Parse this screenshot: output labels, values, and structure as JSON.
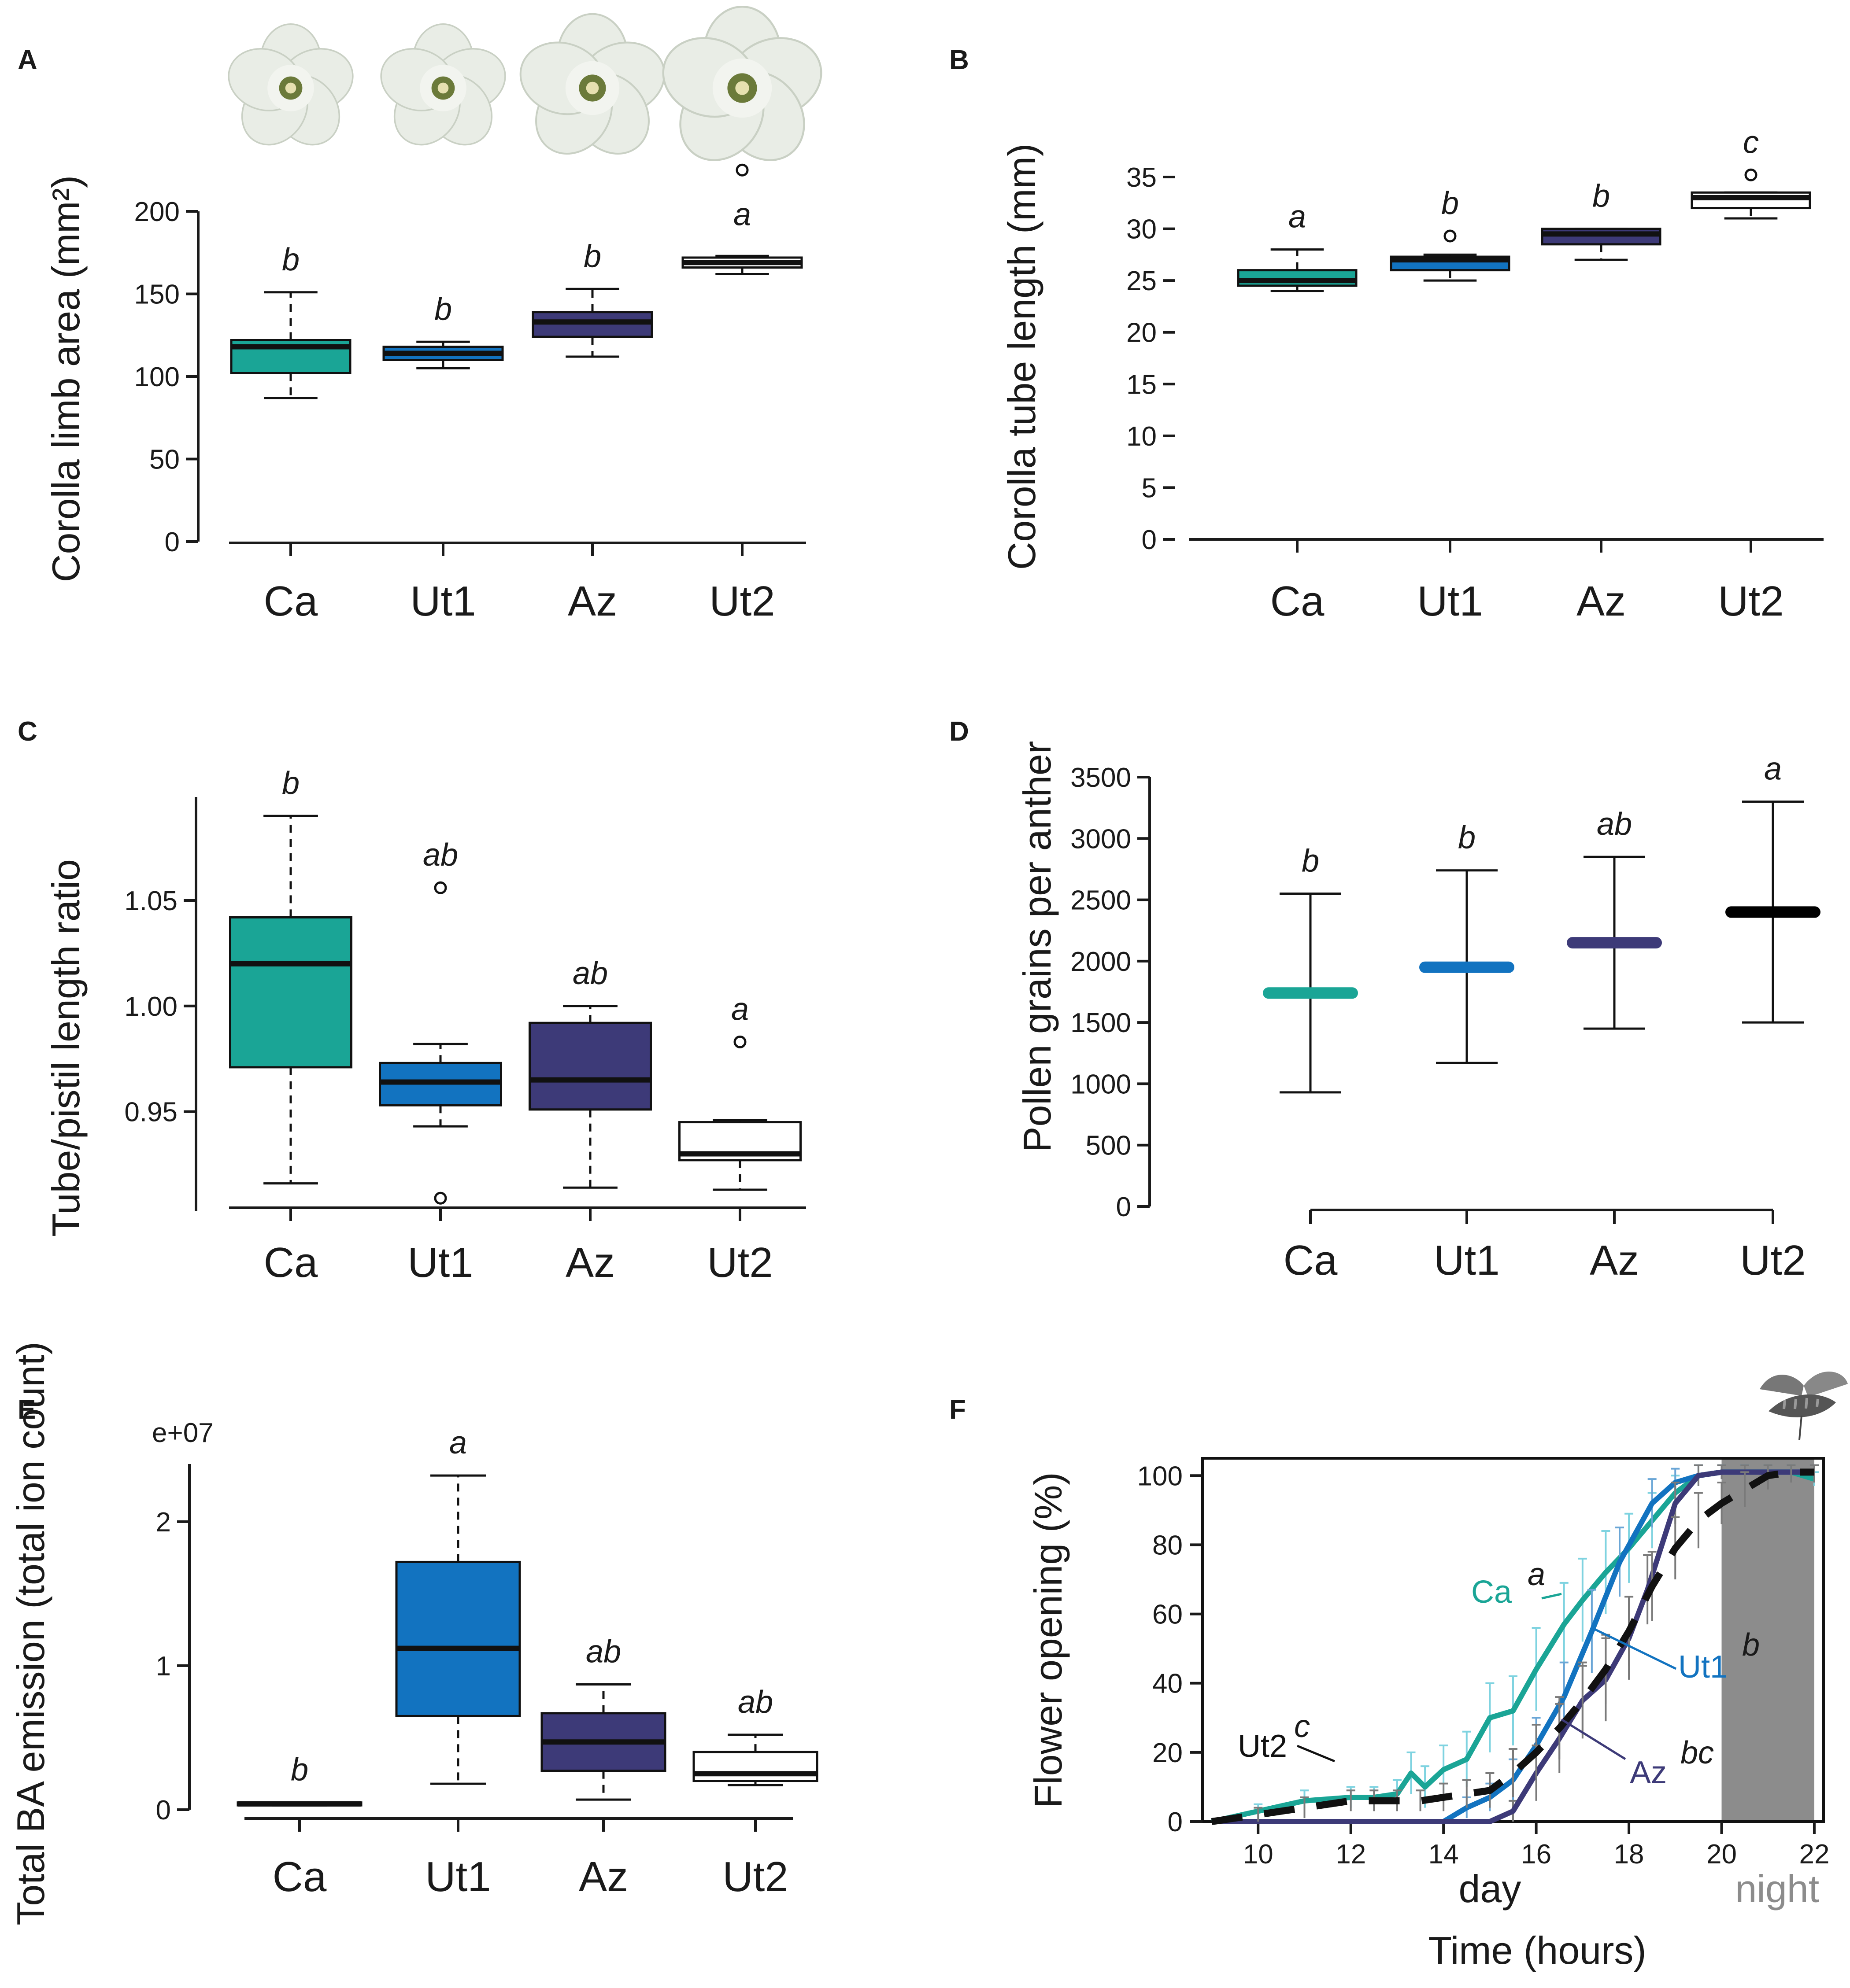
{
  "colors": {
    "Ca": "#1aa596",
    "Ut1": "#1273c0",
    "Az": "#3d3a78",
    "Ut2": "#ffffff",
    "Ut2_line": "#111111",
    "night": "#8c8c8c",
    "error": "#7a7a7a"
  },
  "chart_data": [
    {
      "panel": "A",
      "type": "box",
      "ylabel": "Corolla limb area (mm²)",
      "ylim": [
        0,
        200
      ],
      "yticks": [
        "0",
        "50",
        "100",
        "150",
        "200"
      ],
      "categories": [
        "Ca",
        "Ut1",
        "Az",
        "Ut2"
      ],
      "boxes": [
        {
          "name": "Ca",
          "whisker_low": 87,
          "q1": 102,
          "median": 118,
          "q3": 122,
          "whisker_high": 151,
          "outliers": [],
          "sig": "b"
        },
        {
          "name": "Ut1",
          "whisker_low": 105,
          "q1": 110,
          "median": 114,
          "q3": 118,
          "whisker_high": 121,
          "outliers": [],
          "sig": "b"
        },
        {
          "name": "Az",
          "whisker_low": 112,
          "q1": 124,
          "median": 133,
          "q3": 139,
          "whisker_high": 153,
          "outliers": [],
          "sig": "b"
        },
        {
          "name": "Ut2",
          "whisker_low": 162,
          "q1": 166,
          "median": 169,
          "q3": 172,
          "whisker_high": 173,
          "outliers": [
            225
          ],
          "sig": "a"
        }
      ]
    },
    {
      "panel": "B",
      "type": "box",
      "ylabel": "Corolla tube length (mm)",
      "ylim": [
        0,
        35
      ],
      "yticks": [
        "0",
        "5",
        "10",
        "15",
        "20",
        "25",
        "30",
        "35"
      ],
      "categories": [
        "Ca",
        "Ut1",
        "Az",
        "Ut2"
      ],
      "boxes": [
        {
          "name": "Ca",
          "whisker_low": 24,
          "q1": 24.5,
          "median": 25.0,
          "q3": 26.0,
          "whisker_high": 28,
          "outliers": [],
          "sig": "a"
        },
        {
          "name": "Ut1",
          "whisker_low": 25,
          "q1": 26.0,
          "median": 27.0,
          "q3": 27.3,
          "whisker_high": 27.5,
          "outliers": [
            29.3
          ],
          "sig": "b"
        },
        {
          "name": "Az",
          "whisker_low": 27,
          "q1": 28.5,
          "median": 29.5,
          "q3": 30.0,
          "whisker_high": 30.0,
          "outliers": [],
          "sig": "b"
        },
        {
          "name": "Ut2",
          "whisker_low": 31,
          "q1": 32.0,
          "median": 33.0,
          "q3": 33.5,
          "whisker_high": 33.5,
          "outliers": [
            35.2
          ],
          "sig": "c"
        }
      ]
    },
    {
      "panel": "C",
      "type": "box",
      "ylabel": "Tube/pistil length ratio",
      "ylim": [
        0.903,
        1.099
      ],
      "yticks": [
        "0.95",
        "1.00",
        "1.05"
      ],
      "categories": [
        "Ca",
        "Ut1",
        "Az",
        "Ut2"
      ],
      "boxes": [
        {
          "name": "Ca",
          "whisker_low": 0.916,
          "q1": 0.971,
          "median": 1.02,
          "q3": 1.042,
          "whisker_high": 1.09,
          "outliers": [],
          "sig": "b"
        },
        {
          "name": "Ut1",
          "whisker_low": 0.943,
          "q1": 0.953,
          "median": 0.964,
          "q3": 0.973,
          "whisker_high": 0.982,
          "outliers": [
            1.056,
            0.909
          ],
          "sig": "ab"
        },
        {
          "name": "Az",
          "whisker_low": 0.914,
          "q1": 0.951,
          "median": 0.965,
          "q3": 0.992,
          "whisker_high": 1.0,
          "outliers": [],
          "sig": "ab"
        },
        {
          "name": "Ut2",
          "whisker_low": 0.913,
          "q1": 0.927,
          "median": 0.93,
          "q3": 0.945,
          "whisker_high": 0.946,
          "outliers": [
            0.983
          ],
          "sig": "a"
        }
      ]
    },
    {
      "panel": "D",
      "type": "mean_range",
      "ylabel": "Pollen grains per anther",
      "ylim": [
        0,
        3500
      ],
      "yticks": [
        "0",
        "500",
        "1000",
        "1500",
        "2000",
        "2500",
        "3000",
        "3500"
      ],
      "categories": [
        "Ca",
        "Ut1",
        "Az",
        "Ut2"
      ],
      "points": [
        {
          "name": "Ca",
          "mean": 1740,
          "low": 930,
          "high": 2550,
          "sig": "b"
        },
        {
          "name": "Ut1",
          "mean": 1950,
          "low": 1170,
          "high": 2740,
          "sig": "b"
        },
        {
          "name": "Az",
          "mean": 2150,
          "low": 1450,
          "high": 2850,
          "sig": "ab"
        },
        {
          "name": "Ut2",
          "mean": 2400,
          "low": 1500,
          "high": 3300,
          "sig": "a"
        }
      ]
    },
    {
      "panel": "E",
      "type": "box",
      "ylabel": "Total BA emission (total ion count)",
      "yscale": "e+07",
      "ylim": [
        0,
        2.4
      ],
      "yticks": [
        "0",
        "1",
        "2"
      ],
      "categories": [
        "Ca",
        "Ut1",
        "Az",
        "Ut2"
      ],
      "boxes": [
        {
          "name": "Ca",
          "whisker_low": 0.03,
          "q1": 0.03,
          "median": 0.04,
          "q3": 0.05,
          "whisker_high": 0.05,
          "outliers": [],
          "sig": "b"
        },
        {
          "name": "Ut1",
          "whisker_low": 0.18,
          "q1": 0.65,
          "median": 1.12,
          "q3": 1.72,
          "whisker_high": 2.32,
          "outliers": [],
          "sig": "a"
        },
        {
          "name": "Az",
          "whisker_low": 0.07,
          "q1": 0.27,
          "median": 0.47,
          "q3": 0.67,
          "whisker_high": 0.87,
          "outliers": [],
          "sig": "ab"
        },
        {
          "name": "Ut2",
          "whisker_low": 0.17,
          "q1": 0.2,
          "median": 0.25,
          "q3": 0.4,
          "whisker_high": 0.52,
          "outliers": [],
          "sig": "ab"
        }
      ]
    },
    {
      "panel": "F",
      "type": "line",
      "title": "",
      "xlabel": "Time (hours)",
      "ylabel": "Flower opening (%)",
      "xlim": [
        8.8,
        22.2
      ],
      "ylim": [
        0,
        105
      ],
      "xticks": [
        "10",
        "12",
        "14",
        "16",
        "18",
        "20",
        "22"
      ],
      "yticks": [
        "0",
        "20",
        "40",
        "60",
        "80",
        "100"
      ],
      "period_labels": {
        "day": "day",
        "night": "night"
      },
      "night_range": [
        20,
        22
      ],
      "series": [
        {
          "name": "Ca",
          "label": "Ca",
          "sig": "a",
          "x": [
            9,
            10,
            11,
            12,
            12.5,
            13,
            13.3,
            13.6,
            14,
            14.5,
            15,
            15.5,
            16,
            16.6,
            17,
            17.5,
            18,
            18.5,
            19,
            19.5,
            20,
            20.5,
            21,
            21.5,
            22
          ],
          "y": [
            0,
            3,
            6,
            7,
            7,
            8,
            14,
            10,
            15,
            18,
            30,
            32,
            44,
            57,
            64,
            72,
            79,
            87,
            95,
            100,
            101,
            101,
            101,
            101,
            99
          ],
          "err": [
            0,
            2,
            3,
            3,
            3,
            4,
            6,
            6,
            7,
            8,
            10,
            10,
            12,
            12,
            12,
            12,
            10,
            8,
            5,
            3,
            2,
            2,
            2,
            2,
            2
          ]
        },
        {
          "name": "Ut1",
          "label": "Ut1",
          "sig": "b",
          "x": [
            9,
            10,
            11,
            12,
            13,
            14,
            14.5,
            15,
            15.5,
            16,
            16.6,
            17.2,
            17.8,
            18.5,
            19,
            19.5,
            20,
            20.5,
            21,
            21.5,
            22
          ],
          "y": [
            0,
            0,
            0,
            0,
            0,
            0,
            4,
            7,
            12,
            22,
            36,
            55,
            75,
            92,
            98,
            100,
            101,
            101,
            101,
            101,
            101
          ],
          "err": [
            0,
            0,
            0,
            0,
            0,
            0,
            3,
            4,
            6,
            8,
            10,
            12,
            10,
            7,
            4,
            3,
            2,
            2,
            2,
            2,
            2
          ]
        },
        {
          "name": "Az",
          "label": "Az",
          "sig": "bc",
          "x": [
            9,
            10,
            11,
            12,
            13,
            14,
            15,
            15.5,
            16,
            16.5,
            17,
            17.5,
            18,
            18.4,
            19,
            19.5,
            20,
            20.5,
            21,
            21.5,
            22
          ],
          "y": [
            0,
            0,
            0,
            0,
            0,
            0,
            0,
            3,
            14,
            24,
            35,
            41,
            53,
            67,
            92,
            100,
            101,
            101,
            101,
            101,
            101
          ],
          "err": [
            0,
            0,
            0,
            0,
            0,
            0,
            0,
            3,
            8,
            10,
            11,
            12,
            12,
            10,
            6,
            3,
            2,
            2,
            2,
            2,
            2
          ]
        },
        {
          "name": "Ut2",
          "label": "Ut2",
          "sig": "c",
          "dashed": true,
          "x": [
            9,
            10,
            11,
            12,
            12.5,
            13,
            13.5,
            14,
            14.5,
            15,
            15.5,
            16,
            16.5,
            17,
            17.5,
            18,
            18.5,
            19,
            19.5,
            20,
            20.5,
            21,
            21.5,
            22
          ],
          "y": [
            0,
            2,
            4,
            6,
            6,
            6,
            6,
            7,
            8,
            9,
            14,
            20,
            27,
            35,
            44,
            55,
            68,
            79,
            87,
            92,
            96,
            100,
            101,
            101
          ],
          "err": [
            0,
            2,
            3,
            3,
            3,
            3,
            3,
            4,
            4,
            5,
            7,
            8,
            9,
            10,
            10,
            10,
            10,
            9,
            8,
            6,
            5,
            4,
            3,
            3
          ]
        }
      ]
    }
  ]
}
